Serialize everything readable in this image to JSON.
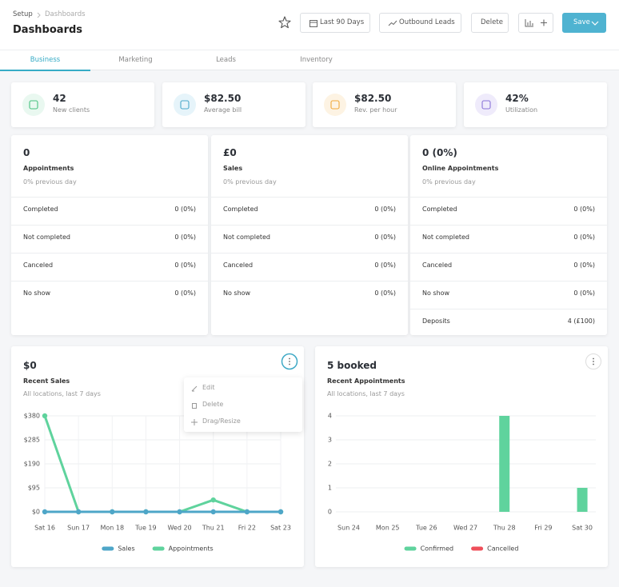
{
  "breadcrumb": [
    "Setup",
    "Dashboards"
  ],
  "header": {
    "title": "Dashboards",
    "buttons": [
      "Last 90 Days",
      "Outbound Leads",
      "Delete",
      "Save"
    ]
  },
  "tabs": [
    "Business",
    "Marketing",
    "Leads",
    "Inventory"
  ],
  "kpis": [
    {
      "value": "42",
      "label": "New clients"
    },
    {
      "value": "$82.50",
      "label": "Average bill"
    },
    {
      "value": "$82.50",
      "label": "Rev. per hour"
    },
    {
      "value": "42%",
      "label": "Utilization"
    }
  ],
  "stat_cards": [
    {
      "value": "0",
      "title": "Appointments",
      "subtitle": "0% previous day",
      "rows": [
        [
          "Completed",
          "0 (0%)"
        ],
        [
          "Not completed",
          "0 (0%)"
        ],
        [
          "Canceled",
          "0 (0%)"
        ],
        [
          "No show",
          "0 (0%)"
        ]
      ]
    },
    {
      "value": "£0",
      "title": "Sales",
      "subtitle": "0% previous day",
      "rows": [
        [
          "Completed",
          "0 (0%)"
        ],
        [
          "Not completed",
          "0 (0%)"
        ],
        [
          "Canceled",
          "0 (0%)"
        ],
        [
          "No show",
          "0 (0%)"
        ]
      ]
    },
    {
      "value": "0 (0%)",
      "title": "Online Appointments",
      "subtitle": "0% previous day",
      "rows": [
        [
          "Completed",
          "0 (0%)"
        ],
        [
          "Not completed",
          "0 (0%)"
        ],
        [
          "Canceled",
          "0 (0%)"
        ],
        [
          "No show",
          "0 (0%)"
        ],
        [
          "Deposits",
          "4 (£100)"
        ]
      ]
    }
  ],
  "widgets": [
    {
      "value": "$0",
      "title": "Recent Sales",
      "subtitle": "All locations, last 7 days",
      "menu": [
        "Edit",
        "Delete",
        "Drag/Resize"
      ],
      "chart": {
        "type": "line",
        "categories": [
          "Sat 16",
          "Sun 17",
          "Mon 18",
          "Tue 19",
          "Wed 20",
          "Thu 21",
          "Fri 22",
          "Sat 23"
        ],
        "series": [
          {
            "name": "Sales",
            "color": "#4ea6c8",
            "values": [
              0,
              0,
              0,
              0,
              0,
              0,
              0,
              0
            ]
          },
          {
            "name": "Appointments",
            "color": "#5fd39d",
            "values": [
              380,
              0,
              0,
              0,
              0,
              47,
              0,
              0
            ]
          }
        ],
        "ylim": [
          0,
          380
        ],
        "yticks": [
          {
            "value": 0,
            "label": "$0"
          },
          {
            "value": 95,
            "label": "$95"
          },
          {
            "value": 190,
            "label": "$190"
          },
          {
            "value": 285,
            "label": "$285"
          },
          {
            "value": 380,
            "label": "$380"
          }
        ],
        "grid": true
      }
    },
    {
      "value": "5 booked",
      "title": "Recent Appointments",
      "subtitle": "All locations, last 7 days",
      "chart": {
        "type": "bar",
        "categories": [
          "Sun 24",
          "Mon 25",
          "Tue 26",
          "Wed 27",
          "Thu 28",
          "Fri 29",
          "Sat 30"
        ],
        "series": [
          {
            "name": "Confirmed",
            "color": "#5fd39d",
            "values": [
              0,
              0,
              0,
              0,
              4,
              0,
              1
            ]
          },
          {
            "name": "Cancelled",
            "color": "#ef4f5a",
            "values": [
              0,
              0,
              0,
              0,
              0,
              0,
              0
            ]
          }
        ],
        "ylim": [
          0,
          4
        ],
        "yticks": [
          0,
          1,
          2,
          3,
          4
        ],
        "grid": true
      }
    }
  ]
}
